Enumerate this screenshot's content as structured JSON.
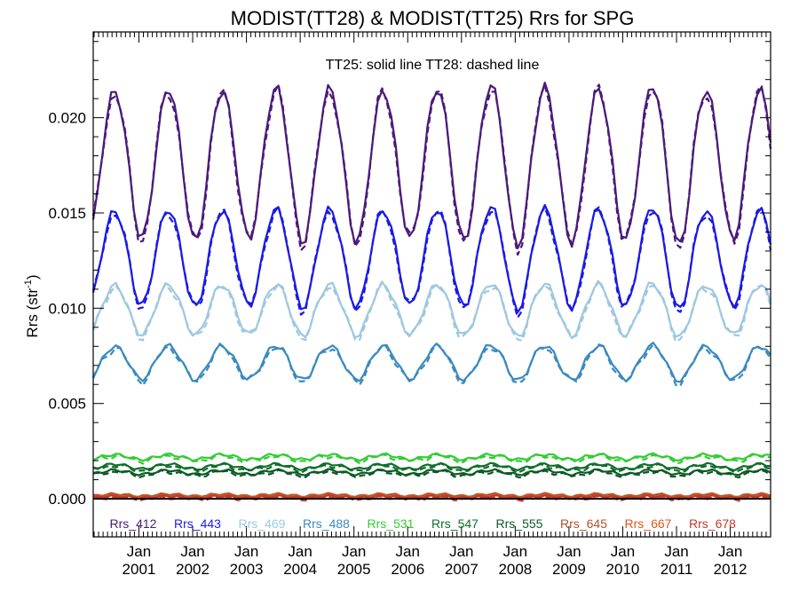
{
  "chart_data": {
    "type": "line",
    "title": "MODIST(TT28) & MODIST(TT25)  Rrs for SPG",
    "annotation": "TT25: solid line   TT28: dashed line",
    "ylabel": "Rrs (str",
    "ylabel_sup": "-1",
    "ylabel_close": ")",
    "ylim": [
      -0.002,
      0.0245
    ],
    "xlim": [
      2000.15,
      2012.75
    ],
    "x_ticks": [
      {
        "line1": "Jan",
        "line2": "2001",
        "x": 2001
      },
      {
        "line1": "Jan",
        "line2": "2002",
        "x": 2002
      },
      {
        "line1": "Jan",
        "line2": "2003",
        "x": 2003
      },
      {
        "line1": "Jan",
        "line2": "2004",
        "x": 2004
      },
      {
        "line1": "Jan",
        "line2": "2005",
        "x": 2005
      },
      {
        "line1": "Jan",
        "line2": "2006",
        "x": 2006
      },
      {
        "line1": "Jan",
        "line2": "2007",
        "x": 2007
      },
      {
        "line1": "Jan",
        "line2": "2008",
        "x": 2008
      },
      {
        "line1": "Jan",
        "line2": "2009",
        "x": 2009
      },
      {
        "line1": "Jan",
        "line2": "2010",
        "x": 2010
      },
      {
        "line1": "Jan",
        "line2": "2011",
        "x": 2011
      },
      {
        "line1": "Jan",
        "line2": "2012",
        "x": 2012
      }
    ],
    "y_ticks": [
      {
        "value": 0.0,
        "label": "0.000"
      },
      {
        "value": 0.005,
        "label": "0.005"
      },
      {
        "value": 0.01,
        "label": "0.010"
      },
      {
        "value": 0.015,
        "label": "0.015"
      },
      {
        "value": 0.02,
        "label": "0.020"
      }
    ],
    "zero_line": true,
    "legend_position": "bottom",
    "peaks": [
      0.0203,
      0.0211,
      0.0204,
      0.0214,
      0.0212,
      0.0205,
      0.021,
      0.0222,
      0.0215,
      0.0208,
      0.0222,
      0.0206
    ],
    "series": [
      {
        "name": "Rrs_412",
        "color": "#4b1a7a",
        "mean": 0.0178,
        "amp": 0.0036,
        "trough": 0.0136
      },
      {
        "name": "Rrs_443",
        "color": "#1a1ae6",
        "mean": 0.0128,
        "amp": 0.0023,
        "trough": 0.0105
      },
      {
        "name": "Rrs_469",
        "color": "#9ec8e0",
        "mean": 0.01,
        "amp": 0.0012,
        "trough": 0.009
      },
      {
        "name": "Rrs_488",
        "color": "#3a8abf",
        "mean": 0.0072,
        "amp": 0.0008,
        "trough": 0.0064
      },
      {
        "name": "Rrs_531",
        "color": "#33cc33",
        "mean": 0.0022,
        "amp": 0.00012,
        "trough": 0.0021
      },
      {
        "name": "Rrs_547",
        "color": "#0f6e2a",
        "mean": 0.0017,
        "amp": 0.00012,
        "trough": 0.0016
      },
      {
        "name": "Rrs_555",
        "color": "#0c5a24",
        "mean": 0.0014,
        "amp": 0.0001,
        "trough": 0.0013
      },
      {
        "name": "Rrs_645",
        "color": "#b0532a",
        "mean": 0.0002,
        "amp": 5e-05,
        "trough": 0.00015
      },
      {
        "name": "Rrs_667",
        "color": "#e0561a",
        "mean": 0.00014,
        "amp": 4e-05,
        "trough": 0.0001
      },
      {
        "name": "Rrs_678",
        "color": "#c0392b",
        "mean": 0.0001,
        "amp": 4e-05,
        "trough": 6e-05
      }
    ]
  }
}
